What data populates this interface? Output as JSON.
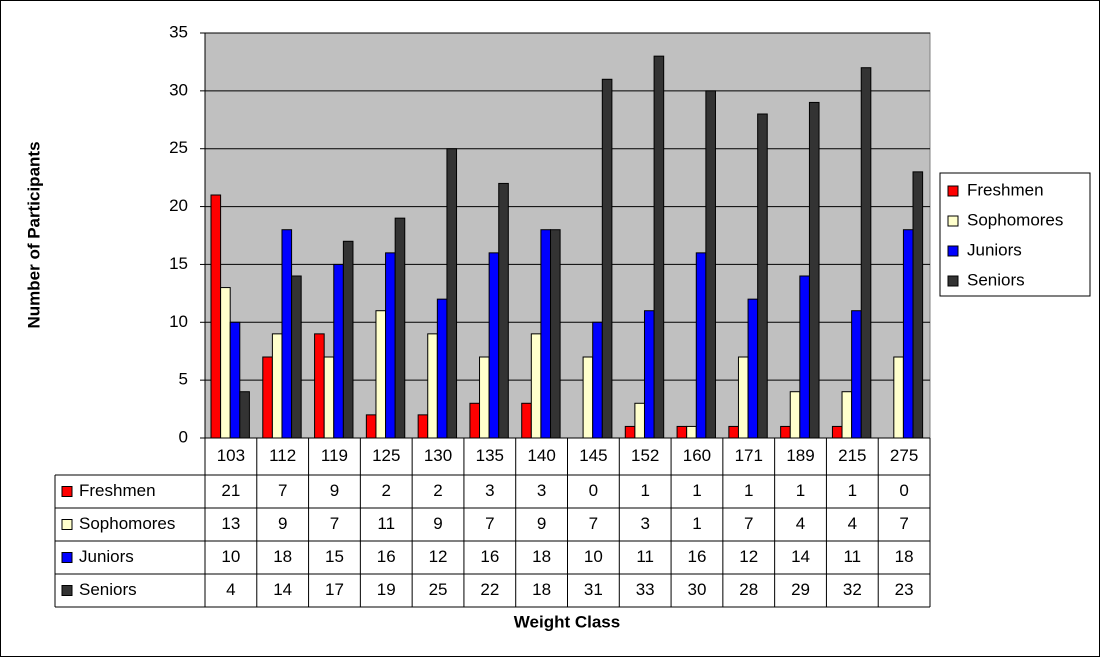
{
  "chart_data": {
    "type": "bar",
    "y_label": "Number of Participants",
    "x_label": "Weight Class",
    "categories": [
      "103",
      "112",
      "119",
      "125",
      "130",
      "135",
      "140",
      "145",
      "152",
      "160",
      "171",
      "189",
      "215",
      "275"
    ],
    "series": [
      {
        "name": "Freshmen",
        "color": "#ff0000",
        "values": [
          21,
          7,
          9,
          2,
          2,
          3,
          3,
          0,
          1,
          1,
          1,
          1,
          1,
          0
        ]
      },
      {
        "name": "Sophomores",
        "color": "#ffffcc",
        "values": [
          13,
          9,
          7,
          11,
          9,
          7,
          9,
          7,
          3,
          1,
          7,
          4,
          4,
          7
        ]
      },
      {
        "name": "Juniors",
        "color": "#0000ff",
        "values": [
          10,
          18,
          15,
          16,
          12,
          16,
          18,
          10,
          11,
          16,
          12,
          14,
          11,
          18
        ]
      },
      {
        "name": "Seniors",
        "color": "#333333",
        "values": [
          4,
          14,
          17,
          19,
          25,
          22,
          18,
          31,
          33,
          30,
          28,
          29,
          32,
          23
        ]
      }
    ],
    "ylim": [
      0,
      35
    ],
    "yticks": [
      0,
      5,
      10,
      15,
      20,
      25,
      30,
      35
    ],
    "grid": true,
    "legend": "right",
    "data_table": true
  }
}
